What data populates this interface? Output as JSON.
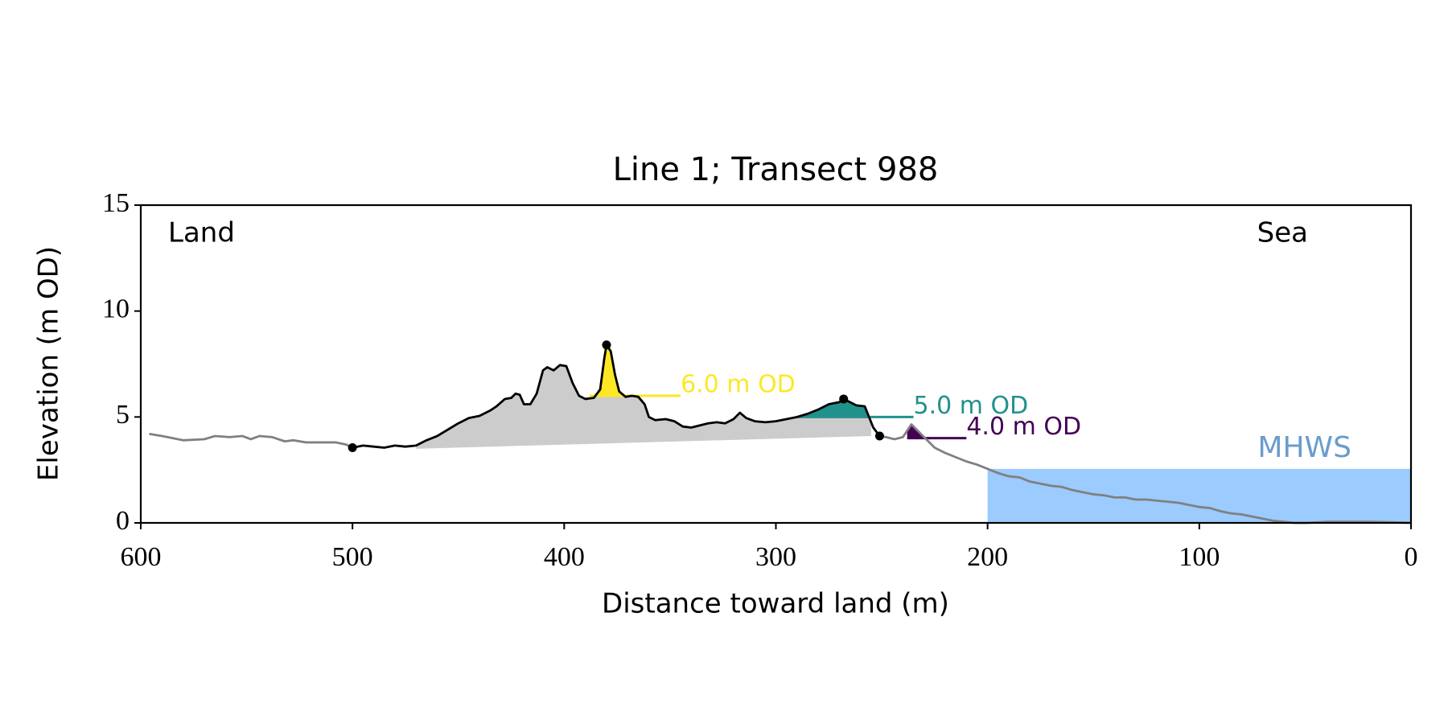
{
  "chart_data": {
    "type": "line",
    "title": "Line 1; Transect 988",
    "xlabel": "Distance toward land (m)",
    "ylabel": "Elevation (m OD)",
    "annotations": {
      "left": "Land",
      "right": "Sea"
    },
    "xlim": [
      600,
      0
    ],
    "xticks": [
      600,
      500,
      400,
      300,
      200,
      100,
      0
    ],
    "ylim": [
      0,
      15
    ],
    "yticks": [
      0,
      5,
      10,
      15
    ],
    "series": [
      {
        "color": "#808080",
        "x": [
          596,
          590,
          585,
          580,
          570,
          565,
          558,
          552,
          548,
          544,
          538,
          532,
          528,
          522,
          515,
          508,
          503,
          500
        ],
        "values": [
          4.2,
          4.1,
          4.0,
          3.9,
          3.95,
          4.1,
          4.05,
          4.1,
          3.95,
          4.1,
          4.05,
          3.85,
          3.9,
          3.8,
          3.8,
          3.8,
          3.7,
          3.55
        ]
      },
      {
        "color": "#000000",
        "x": [
          500,
          495,
          490,
          485,
          480,
          475,
          470,
          465,
          460,
          455,
          450,
          445,
          440,
          435,
          432,
          428,
          425,
          423,
          421,
          419,
          416,
          413,
          410,
          408,
          405,
          402,
          399,
          396,
          393,
          390,
          386,
          383,
          381,
          380,
          378,
          376,
          374,
          371,
          368,
          365,
          362,
          360,
          357,
          352,
          348,
          344,
          340,
          336,
          332,
          328,
          324,
          320,
          317,
          314,
          310,
          305,
          300,
          295,
          290,
          285,
          280,
          275,
          270,
          268,
          265,
          262,
          258,
          256,
          254,
          251
        ],
        "values": [
          3.55,
          3.65,
          3.6,
          3.55,
          3.65,
          3.6,
          3.65,
          3.9,
          4.1,
          4.4,
          4.7,
          4.95,
          5.05,
          5.3,
          5.5,
          5.85,
          5.9,
          6.1,
          6.05,
          5.6,
          5.6,
          6.1,
          7.2,
          7.35,
          7.2,
          7.45,
          7.4,
          6.6,
          6.0,
          5.85,
          5.9,
          6.3,
          7.8,
          8.4,
          8.1,
          7.0,
          6.2,
          5.95,
          6.0,
          5.95,
          5.6,
          5.0,
          4.85,
          4.9,
          4.8,
          4.55,
          4.5,
          4.6,
          4.7,
          4.75,
          4.7,
          4.9,
          5.2,
          4.95,
          4.8,
          4.75,
          4.8,
          4.9,
          5.0,
          5.15,
          5.35,
          5.6,
          5.7,
          5.85,
          5.7,
          5.55,
          5.5,
          5.0,
          4.5,
          4.1
        ]
      },
      {
        "color": "#808080",
        "x": [
          251,
          248,
          244,
          240,
          236,
          233,
          230,
          225,
          220,
          215,
          210,
          205,
          200,
          195,
          190,
          185,
          180,
          175,
          170,
          165,
          160,
          155,
          150,
          145,
          140,
          135,
          130,
          125,
          120,
          115,
          110,
          105,
          100,
          95,
          90,
          85,
          80,
          75,
          70,
          65,
          60,
          55,
          50,
          45,
          40,
          30,
          20,
          10,
          0
        ],
        "values": [
          4.1,
          4.05,
          3.95,
          4.05,
          4.65,
          4.35,
          4.05,
          3.55,
          3.3,
          3.1,
          2.9,
          2.75,
          2.55,
          2.35,
          2.2,
          2.15,
          1.95,
          1.85,
          1.75,
          1.7,
          1.55,
          1.45,
          1.35,
          1.3,
          1.2,
          1.2,
          1.1,
          1.1,
          1.05,
          1.0,
          0.95,
          0.85,
          0.75,
          0.7,
          0.55,
          0.45,
          0.4,
          0.3,
          0.2,
          0.1,
          0.05,
          0.0,
          0.0,
          0.02,
          0.05,
          0.05,
          0.05,
          0.03,
          0.0
        ]
      }
    ],
    "points": {
      "color": "#000000",
      "x": [
        500,
        380,
        268,
        251
      ],
      "values": [
        3.55,
        8.4,
        5.85,
        4.1
      ]
    },
    "base": {
      "color": "#cccccc",
      "x": [
        470,
        255
      ],
      "values": [
        3.5,
        4.1
      ]
    },
    "thresholds": [
      {
        "label": "6.0 m OD",
        "value": 6.0,
        "color": "#fde725",
        "line_x": [
          388,
          345
        ]
      },
      {
        "label": "5.0 m OD",
        "value": 5.0,
        "color": "#21918c",
        "line_x": [
          290,
          235
        ]
      },
      {
        "label": "4.0 m OD",
        "value": 4.0,
        "color": "#440154",
        "line_x": [
          238,
          210
        ]
      }
    ],
    "mhws": {
      "label": "MHWS",
      "value": 2.55,
      "xlim": [
        200,
        0
      ],
      "color": "#9bcbff",
      "label_color": "#6a9ccc"
    }
  }
}
